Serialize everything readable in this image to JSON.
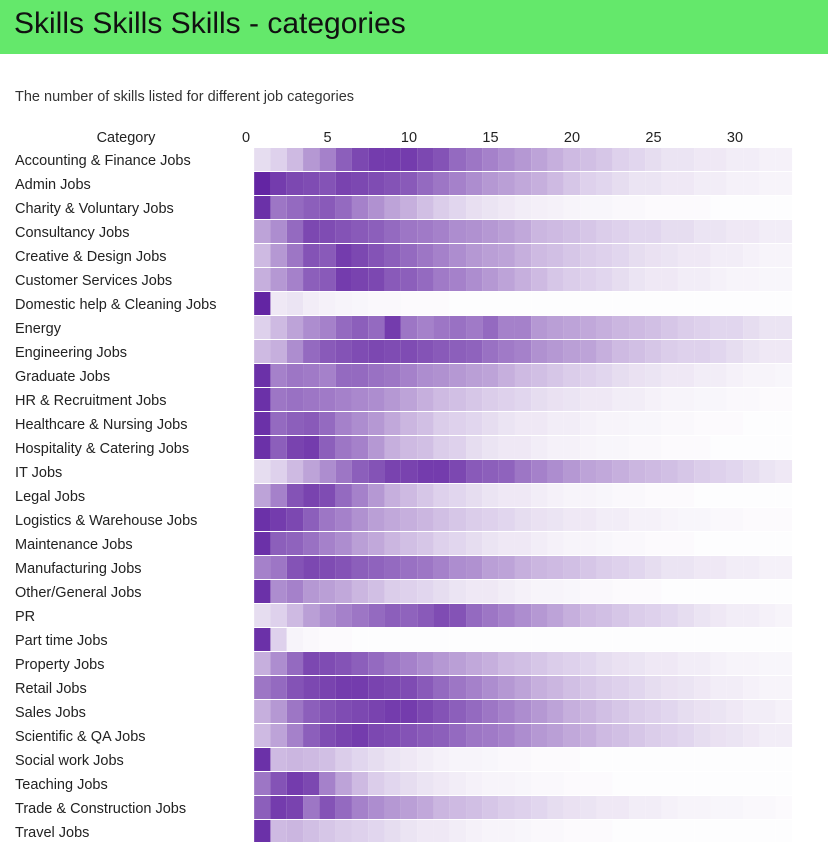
{
  "page": {
    "title": "Skills Skills Skills - categories",
    "subtitle": "The number of skills listed for different job categories"
  },
  "colors": {
    "header_bg": "#64e86b",
    "cell_max": "#5b1a9e",
    "cell_min": "#ffffff"
  },
  "chart_data": {
    "type": "heatmap",
    "title": "The number of skills listed for different job categories",
    "row_header": "Category",
    "x_ticks": [
      "0",
      "5",
      "10",
      "15",
      "20",
      "25",
      "30"
    ],
    "x_tick_values": [
      0,
      5,
      10,
      15,
      20,
      25,
      30
    ],
    "x_range": [
      0,
      33
    ],
    "x_min_shown": 1,
    "x_max_shown": 33,
    "color_scale": "intensity 0-1 (white to dark purple)",
    "rows": [
      {
        "category": "Accounting & Finance Jobs",
        "values": [
          0.15,
          0.2,
          0.3,
          0.45,
          0.55,
          0.7,
          0.8,
          0.85,
          0.85,
          0.85,
          0.8,
          0.75,
          0.65,
          0.6,
          0.55,
          0.5,
          0.45,
          0.4,
          0.35,
          0.3,
          0.28,
          0.25,
          0.2,
          0.18,
          0.15,
          0.12,
          0.12,
          0.1,
          0.1,
          0.08,
          0.08,
          0.06,
          0.06
        ]
      },
      {
        "category": "Admin Jobs",
        "values": [
          0.95,
          0.85,
          0.8,
          0.78,
          0.75,
          0.82,
          0.8,
          0.78,
          0.75,
          0.72,
          0.65,
          0.6,
          0.55,
          0.5,
          0.45,
          0.42,
          0.38,
          0.35,
          0.3,
          0.25,
          0.2,
          0.18,
          0.15,
          0.12,
          0.12,
          0.1,
          0.1,
          0.08,
          0.08,
          0.06,
          0.06,
          0.05,
          0.05
        ]
      },
      {
        "category": "Charity & Voluntary Jobs",
        "values": [
          0.9,
          0.6,
          0.65,
          0.7,
          0.72,
          0.65,
          0.55,
          0.48,
          0.4,
          0.35,
          0.28,
          0.22,
          0.18,
          0.14,
          0.12,
          0.1,
          0.08,
          0.07,
          0.06,
          0.05,
          0.04,
          0.04,
          0.03,
          0.03,
          0.02,
          0.02,
          0.02,
          0.02,
          0.01,
          0.01,
          0.01,
          0.01,
          0.01
        ]
      },
      {
        "category": "Consultancy Jobs",
        "values": [
          0.4,
          0.5,
          0.65,
          0.8,
          0.78,
          0.75,
          0.72,
          0.7,
          0.65,
          0.6,
          0.58,
          0.55,
          0.5,
          0.48,
          0.45,
          0.42,
          0.38,
          0.32,
          0.3,
          0.28,
          0.25,
          0.22,
          0.2,
          0.18,
          0.18,
          0.15,
          0.15,
          0.12,
          0.12,
          0.1,
          0.1,
          0.08,
          0.08
        ]
      },
      {
        "category": "Creative & Design Jobs",
        "values": [
          0.3,
          0.45,
          0.6,
          0.75,
          0.72,
          0.85,
          0.8,
          0.75,
          0.7,
          0.65,
          0.6,
          0.55,
          0.5,
          0.45,
          0.42,
          0.4,
          0.35,
          0.3,
          0.28,
          0.25,
          0.22,
          0.2,
          0.18,
          0.15,
          0.13,
          0.12,
          0.1,
          0.1,
          0.08,
          0.08,
          0.06,
          0.05,
          0.05
        ]
      },
      {
        "category": "Customer Services Jobs",
        "values": [
          0.35,
          0.45,
          0.55,
          0.7,
          0.72,
          0.85,
          0.82,
          0.8,
          0.72,
          0.7,
          0.65,
          0.58,
          0.55,
          0.5,
          0.45,
          0.4,
          0.35,
          0.3,
          0.25,
          0.22,
          0.2,
          0.18,
          0.15,
          0.12,
          0.1,
          0.1,
          0.08,
          0.08,
          0.06,
          0.05,
          0.05,
          0.04,
          0.04
        ]
      },
      {
        "category": "Domestic help & Cleaning Jobs",
        "values": [
          0.95,
          0.1,
          0.12,
          0.08,
          0.06,
          0.05,
          0.04,
          0.03,
          0.03,
          0.02,
          0.02,
          0.02,
          0.01,
          0.01,
          0.01,
          0.01,
          0.01,
          0.01,
          0.01,
          0.01,
          0.01,
          0.01,
          0.01,
          0.01,
          0.01,
          0.01,
          0.01,
          0.01,
          0.01,
          0.01,
          0.01,
          0.01,
          0.01
        ]
      },
      {
        "category": "Energy",
        "values": [
          0.2,
          0.3,
          0.4,
          0.5,
          0.55,
          0.65,
          0.7,
          0.65,
          0.85,
          0.6,
          0.55,
          0.6,
          0.62,
          0.58,
          0.65,
          0.55,
          0.55,
          0.45,
          0.42,
          0.4,
          0.38,
          0.35,
          0.32,
          0.3,
          0.28,
          0.25,
          0.22,
          0.2,
          0.18,
          0.18,
          0.15,
          0.12,
          0.12
        ]
      },
      {
        "category": "Engineering Jobs",
        "values": [
          0.3,
          0.35,
          0.5,
          0.65,
          0.72,
          0.75,
          0.78,
          0.8,
          0.78,
          0.78,
          0.75,
          0.72,
          0.7,
          0.68,
          0.62,
          0.58,
          0.55,
          0.48,
          0.45,
          0.42,
          0.4,
          0.35,
          0.3,
          0.28,
          0.25,
          0.22,
          0.2,
          0.2,
          0.18,
          0.15,
          0.12,
          0.1,
          0.1
        ]
      },
      {
        "category": "Graduate Jobs",
        "values": [
          0.9,
          0.55,
          0.6,
          0.58,
          0.55,
          0.65,
          0.65,
          0.62,
          0.6,
          0.55,
          0.5,
          0.48,
          0.45,
          0.42,
          0.4,
          0.35,
          0.3,
          0.28,
          0.25,
          0.22,
          0.2,
          0.18,
          0.15,
          0.13,
          0.12,
          0.1,
          0.1,
          0.08,
          0.08,
          0.06,
          0.05,
          0.05,
          0.04
        ]
      },
      {
        "category": "HR & Recruitment Jobs",
        "values": [
          0.9,
          0.6,
          0.62,
          0.6,
          0.58,
          0.55,
          0.52,
          0.5,
          0.45,
          0.4,
          0.35,
          0.3,
          0.28,
          0.25,
          0.22,
          0.2,
          0.18,
          0.15,
          0.13,
          0.12,
          0.1,
          0.1,
          0.08,
          0.08,
          0.06,
          0.05,
          0.05,
          0.04,
          0.04,
          0.03,
          0.03,
          0.02,
          0.02
        ]
      },
      {
        "category": "Healthcare & Nursing Jobs",
        "values": [
          0.9,
          0.65,
          0.7,
          0.72,
          0.65,
          0.55,
          0.5,
          0.45,
          0.38,
          0.32,
          0.28,
          0.22,
          0.2,
          0.18,
          0.15,
          0.12,
          0.1,
          0.1,
          0.08,
          0.08,
          0.06,
          0.05,
          0.05,
          0.04,
          0.04,
          0.03,
          0.03,
          0.02,
          0.02,
          0.02,
          0.01,
          0.01,
          0.01
        ]
      },
      {
        "category": "Hospitality & Catering Jobs",
        "values": [
          0.9,
          0.7,
          0.82,
          0.85,
          0.7,
          0.6,
          0.55,
          0.45,
          0.35,
          0.3,
          0.28,
          0.22,
          0.2,
          0.15,
          0.12,
          0.1,
          0.1,
          0.08,
          0.06,
          0.06,
          0.05,
          0.04,
          0.04,
          0.03,
          0.03,
          0.02,
          0.02,
          0.02,
          0.01,
          0.01,
          0.01,
          0.01,
          0.01
        ]
      },
      {
        "category": "IT Jobs",
        "values": [
          0.15,
          0.2,
          0.3,
          0.4,
          0.5,
          0.6,
          0.7,
          0.75,
          0.82,
          0.82,
          0.85,
          0.85,
          0.8,
          0.72,
          0.7,
          0.68,
          0.6,
          0.55,
          0.5,
          0.45,
          0.4,
          0.38,
          0.35,
          0.32,
          0.3,
          0.28,
          0.25,
          0.22,
          0.2,
          0.18,
          0.15,
          0.12,
          0.1
        ]
      },
      {
        "category": "Legal Jobs",
        "values": [
          0.4,
          0.55,
          0.75,
          0.82,
          0.78,
          0.65,
          0.55,
          0.45,
          0.35,
          0.3,
          0.25,
          0.2,
          0.18,
          0.15,
          0.12,
          0.1,
          0.1,
          0.08,
          0.06,
          0.05,
          0.05,
          0.04,
          0.03,
          0.03,
          0.02,
          0.02,
          0.02,
          0.01,
          0.01,
          0.01,
          0.01,
          0.01,
          0.01
        ]
      },
      {
        "category": "Logistics & Warehouse Jobs",
        "values": [
          0.9,
          0.85,
          0.8,
          0.7,
          0.6,
          0.55,
          0.48,
          0.42,
          0.38,
          0.35,
          0.32,
          0.28,
          0.25,
          0.22,
          0.2,
          0.18,
          0.15,
          0.13,
          0.12,
          0.1,
          0.1,
          0.08,
          0.08,
          0.06,
          0.06,
          0.05,
          0.04,
          0.04,
          0.03,
          0.03,
          0.02,
          0.02,
          0.02
        ]
      },
      {
        "category": "Maintenance Jobs",
        "values": [
          0.9,
          0.7,
          0.68,
          0.62,
          0.55,
          0.5,
          0.42,
          0.38,
          0.32,
          0.28,
          0.25,
          0.2,
          0.18,
          0.15,
          0.12,
          0.1,
          0.1,
          0.08,
          0.06,
          0.05,
          0.05,
          0.04,
          0.03,
          0.03,
          0.02,
          0.02,
          0.02,
          0.01,
          0.01,
          0.01,
          0.01,
          0.01,
          0.01
        ]
      },
      {
        "category": "Manufacturing Jobs",
        "values": [
          0.55,
          0.6,
          0.75,
          0.8,
          0.78,
          0.75,
          0.7,
          0.68,
          0.65,
          0.62,
          0.6,
          0.55,
          0.5,
          0.48,
          0.42,
          0.4,
          0.35,
          0.32,
          0.3,
          0.28,
          0.25,
          0.22,
          0.2,
          0.18,
          0.15,
          0.12,
          0.12,
          0.1,
          0.1,
          0.08,
          0.08,
          0.06,
          0.06
        ]
      },
      {
        "category": "Other/General Jobs",
        "values": [
          0.9,
          0.5,
          0.55,
          0.45,
          0.42,
          0.38,
          0.32,
          0.28,
          0.22,
          0.2,
          0.18,
          0.15,
          0.12,
          0.1,
          0.1,
          0.08,
          0.06,
          0.05,
          0.05,
          0.04,
          0.03,
          0.03,
          0.02,
          0.02,
          0.02,
          0.01,
          0.01,
          0.01,
          0.01,
          0.01,
          0.01,
          0.01,
          0.01
        ]
      },
      {
        "category": "PR",
        "values": [
          0.15,
          0.2,
          0.3,
          0.42,
          0.5,
          0.55,
          0.6,
          0.65,
          0.7,
          0.68,
          0.72,
          0.78,
          0.75,
          0.65,
          0.6,
          0.55,
          0.5,
          0.45,
          0.4,
          0.35,
          0.3,
          0.28,
          0.25,
          0.22,
          0.2,
          0.18,
          0.15,
          0.12,
          0.1,
          0.08,
          0.08,
          0.06,
          0.05
        ]
      },
      {
        "category": "Part time Jobs",
        "values": [
          0.9,
          0.2,
          0.05,
          0.03,
          0.02,
          0.02,
          0.01,
          0.01,
          0.01,
          0.01,
          0.01,
          0.01,
          0.01,
          0.01,
          0.01,
          0.01,
          0.01,
          0.01,
          0.01,
          0.01,
          0.01,
          0.01,
          0.01,
          0.01,
          0.01,
          0.01,
          0.01,
          0.01,
          0.01,
          0.01,
          0.01,
          0.01,
          0.01
        ]
      },
      {
        "category": "Property Jobs",
        "values": [
          0.35,
          0.5,
          0.65,
          0.8,
          0.78,
          0.75,
          0.7,
          0.65,
          0.6,
          0.55,
          0.5,
          0.45,
          0.42,
          0.38,
          0.35,
          0.3,
          0.28,
          0.25,
          0.22,
          0.2,
          0.18,
          0.15,
          0.13,
          0.12,
          0.1,
          0.1,
          0.08,
          0.08,
          0.06,
          0.05,
          0.05,
          0.04,
          0.04
        ]
      },
      {
        "category": "Retail Jobs",
        "values": [
          0.6,
          0.65,
          0.75,
          0.8,
          0.82,
          0.85,
          0.85,
          0.82,
          0.8,
          0.78,
          0.72,
          0.65,
          0.6,
          0.55,
          0.5,
          0.45,
          0.4,
          0.35,
          0.32,
          0.28,
          0.25,
          0.22,
          0.2,
          0.18,
          0.15,
          0.13,
          0.12,
          0.1,
          0.08,
          0.08,
          0.06,
          0.05,
          0.05
        ]
      },
      {
        "category": "Sales Jobs",
        "values": [
          0.35,
          0.45,
          0.6,
          0.7,
          0.75,
          0.78,
          0.8,
          0.82,
          0.85,
          0.85,
          0.8,
          0.75,
          0.7,
          0.65,
          0.6,
          0.55,
          0.5,
          0.45,
          0.4,
          0.35,
          0.32,
          0.28,
          0.25,
          0.22,
          0.2,
          0.18,
          0.15,
          0.13,
          0.12,
          0.1,
          0.08,
          0.08,
          0.06
        ]
      },
      {
        "category": "Scientific & QA Jobs",
        "values": [
          0.3,
          0.4,
          0.55,
          0.7,
          0.78,
          0.82,
          0.85,
          0.8,
          0.78,
          0.75,
          0.72,
          0.7,
          0.65,
          0.6,
          0.58,
          0.55,
          0.5,
          0.45,
          0.42,
          0.38,
          0.35,
          0.3,
          0.28,
          0.25,
          0.22,
          0.2,
          0.18,
          0.15,
          0.13,
          0.12,
          0.1,
          0.08,
          0.08
        ]
      },
      {
        "category": "Social work Jobs",
        "values": [
          0.9,
          0.3,
          0.32,
          0.3,
          0.28,
          0.22,
          0.18,
          0.15,
          0.12,
          0.1,
          0.08,
          0.06,
          0.05,
          0.05,
          0.04,
          0.03,
          0.03,
          0.02,
          0.02,
          0.02,
          0.01,
          0.01,
          0.01,
          0.01,
          0.01,
          0.01,
          0.01,
          0.01,
          0.01,
          0.01,
          0.01,
          0.01,
          0.01
        ]
      },
      {
        "category": "Teaching Jobs",
        "values": [
          0.6,
          0.75,
          0.85,
          0.8,
          0.55,
          0.4,
          0.3,
          0.22,
          0.18,
          0.15,
          0.12,
          0.1,
          0.08,
          0.06,
          0.05,
          0.05,
          0.04,
          0.03,
          0.03,
          0.02,
          0.02,
          0.02,
          0.01,
          0.01,
          0.01,
          0.01,
          0.01,
          0.01,
          0.01,
          0.01,
          0.01,
          0.01,
          0.01
        ]
      },
      {
        "category": "Trade & Construction Jobs",
        "values": [
          0.7,
          0.85,
          0.82,
          0.6,
          0.75,
          0.65,
          0.55,
          0.5,
          0.45,
          0.42,
          0.38,
          0.32,
          0.3,
          0.28,
          0.25,
          0.22,
          0.2,
          0.18,
          0.15,
          0.13,
          0.12,
          0.1,
          0.1,
          0.08,
          0.08,
          0.06,
          0.05,
          0.05,
          0.04,
          0.04,
          0.03,
          0.03,
          0.02
        ]
      },
      {
        "category": "Travel Jobs",
        "values": [
          0.9,
          0.3,
          0.32,
          0.28,
          0.25,
          0.22,
          0.2,
          0.18,
          0.15,
          0.12,
          0.1,
          0.1,
          0.08,
          0.06,
          0.05,
          0.05,
          0.04,
          0.03,
          0.03,
          0.02,
          0.02,
          0.02,
          0.01,
          0.01,
          0.01,
          0.01,
          0.01,
          0.01,
          0.01,
          0.01,
          0.01,
          0.01,
          0.01
        ]
      }
    ]
  }
}
